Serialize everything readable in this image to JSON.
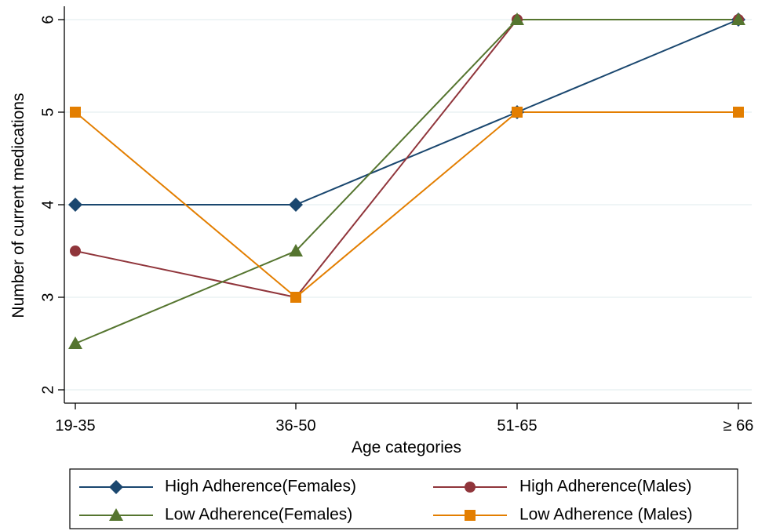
{
  "chart_data": {
    "type": "line",
    "title": "",
    "xlabel": "Age categories",
    "ylabel": "Number of current medications",
    "categories": [
      "19-35",
      "36-50",
      "51-65",
      "≥ 66"
    ],
    "ylim": [
      2,
      6
    ],
    "yticks": [
      2,
      3,
      4,
      5,
      6
    ],
    "grid": true,
    "legend_position": "bottom",
    "series": [
      {
        "name": "High Adherence(Females)",
        "values": [
          4,
          4,
          5,
          6
        ],
        "color": "#1a476f",
        "marker": "diamond"
      },
      {
        "name": "High Adherence(Males)",
        "values": [
          3.5,
          3,
          6,
          6
        ],
        "color": "#90353b",
        "marker": "circle"
      },
      {
        "name": "Low Adherence(Females)",
        "values": [
          2.5,
          3.5,
          6,
          6
        ],
        "color": "#55752f",
        "marker": "triangle"
      },
      {
        "name": "Low Adherence (Males)",
        "values": [
          5,
          3,
          5,
          5
        ],
        "color": "#e37e00",
        "marker": "square"
      }
    ]
  }
}
